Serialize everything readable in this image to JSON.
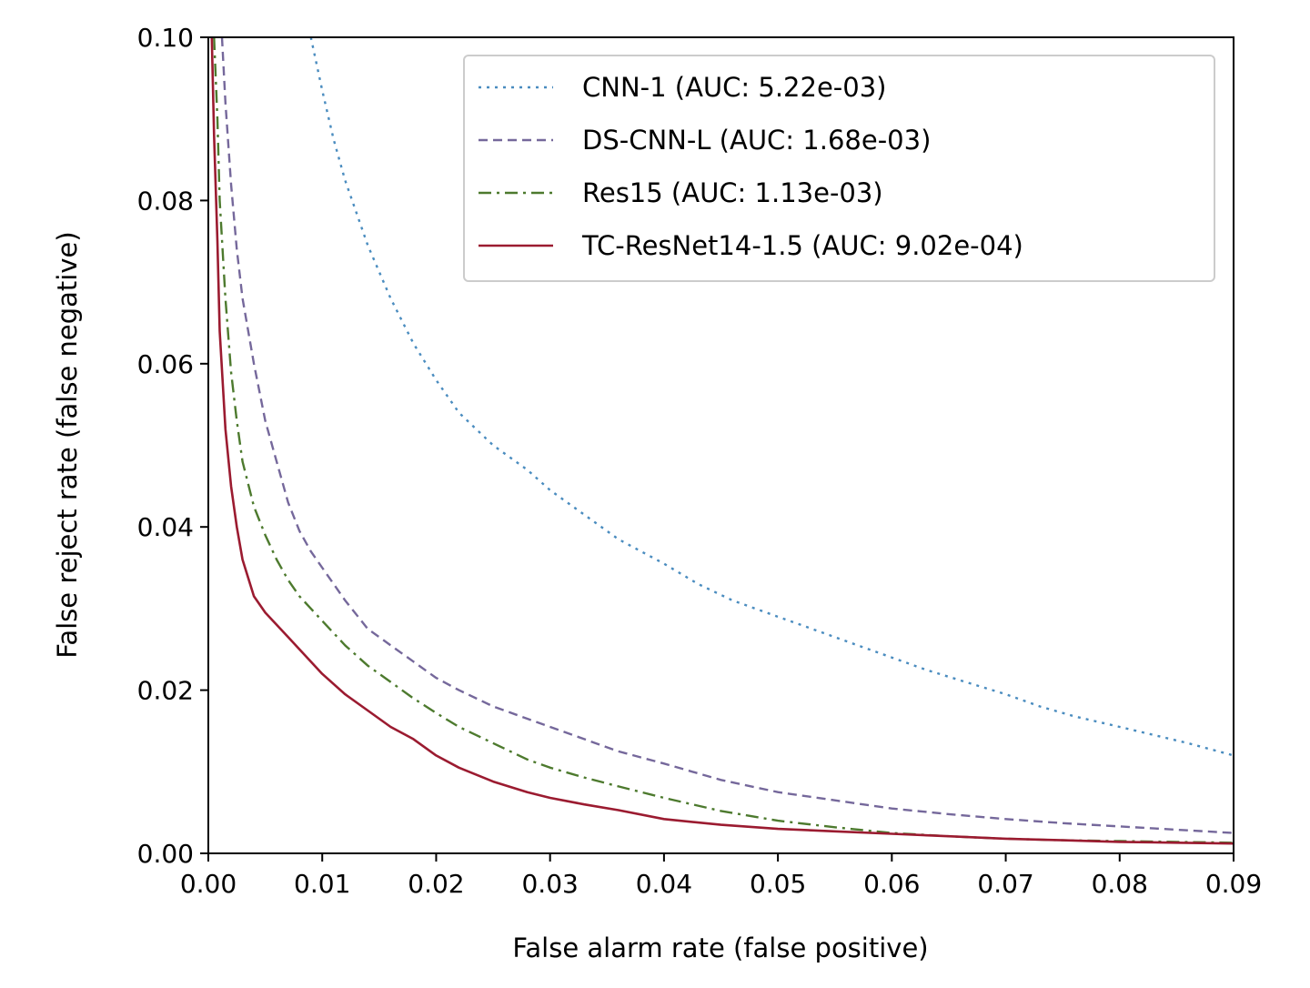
{
  "chart_data": {
    "type": "line",
    "title": "",
    "xlabel": "False alarm rate (false positive)",
    "ylabel": "False reject rate (false negative)",
    "xlim": [
      0.0,
      0.09
    ],
    "ylim": [
      0.0,
      0.1
    ],
    "xticks": [
      "0.00",
      "0.01",
      "0.02",
      "0.03",
      "0.04",
      "0.05",
      "0.06",
      "0.07",
      "0.08",
      "0.09"
    ],
    "yticks": [
      "0.00",
      "0.02",
      "0.04",
      "0.06",
      "0.08",
      "0.10"
    ],
    "grid": false,
    "legend_position": "top-right",
    "series": [
      {
        "name": "CNN-1 (AUC: 5.22e-03)",
        "color": "#4a8cbf",
        "style": "dotted",
        "x": [
          0.009,
          0.01,
          0.011,
          0.012,
          0.014,
          0.016,
          0.018,
          0.02,
          0.022,
          0.025,
          0.028,
          0.03,
          0.033,
          0.036,
          0.04,
          0.043,
          0.046,
          0.05,
          0.052,
          0.055,
          0.058,
          0.06,
          0.063,
          0.066,
          0.07,
          0.073,
          0.076,
          0.08,
          0.083,
          0.086,
          0.09
        ],
        "y": [
          0.1,
          0.0935,
          0.0875,
          0.0825,
          0.0745,
          0.068,
          0.0625,
          0.058,
          0.054,
          0.05,
          0.047,
          0.0445,
          0.0415,
          0.0385,
          0.0355,
          0.033,
          0.031,
          0.029,
          0.028,
          0.0265,
          0.025,
          0.024,
          0.0225,
          0.0212,
          0.0195,
          0.018,
          0.0168,
          0.0155,
          0.0145,
          0.0135,
          0.012
        ]
      },
      {
        "name": "DS-CNN-L (AUC: 1.68e-03)",
        "color": "#75689b",
        "style": "dashed",
        "x": [
          0.0012,
          0.0015,
          0.002,
          0.0025,
          0.003,
          0.004,
          0.005,
          0.006,
          0.007,
          0.008,
          0.009,
          0.01,
          0.012,
          0.014,
          0.016,
          0.018,
          0.02,
          0.022,
          0.025,
          0.028,
          0.03,
          0.033,
          0.036,
          0.04,
          0.045,
          0.05,
          0.055,
          0.06,
          0.065,
          0.07,
          0.075,
          0.08,
          0.085,
          0.09
        ],
        "y": [
          0.1,
          0.092,
          0.082,
          0.074,
          0.068,
          0.06,
          0.053,
          0.048,
          0.043,
          0.0395,
          0.037,
          0.035,
          0.031,
          0.0275,
          0.0255,
          0.0235,
          0.0215,
          0.02,
          0.018,
          0.0165,
          0.0155,
          0.014,
          0.0125,
          0.011,
          0.009,
          0.0075,
          0.0065,
          0.0055,
          0.0048,
          0.0042,
          0.0037,
          0.0033,
          0.0029,
          0.0025
        ]
      },
      {
        "name": "Res15 (AUC: 1.13e-03)",
        "color": "#4d7a2e",
        "style": "dashdot",
        "x": [
          0.0005,
          0.0008,
          0.001,
          0.0015,
          0.002,
          0.0025,
          0.003,
          0.004,
          0.005,
          0.006,
          0.007,
          0.008,
          0.009,
          0.01,
          0.012,
          0.014,
          0.016,
          0.018,
          0.02,
          0.022,
          0.025,
          0.028,
          0.03,
          0.033,
          0.036,
          0.04,
          0.045,
          0.05,
          0.055,
          0.06,
          0.065,
          0.07,
          0.075,
          0.08,
          0.085,
          0.09
        ],
        "y": [
          0.1,
          0.09,
          0.08,
          0.068,
          0.059,
          0.053,
          0.048,
          0.0425,
          0.039,
          0.036,
          0.0335,
          0.0315,
          0.03,
          0.0285,
          0.0255,
          0.023,
          0.021,
          0.019,
          0.0172,
          0.0155,
          0.0135,
          0.0115,
          0.0105,
          0.0093,
          0.0082,
          0.0068,
          0.0052,
          0.004,
          0.0032,
          0.0025,
          0.0021,
          0.0018,
          0.0016,
          0.0015,
          0.0014,
          0.0013
        ]
      },
      {
        "name": "TC-ResNet14-1.5 (AUC: 9.02e-04)",
        "color": "#9b1b30",
        "style": "solid",
        "x": [
          0.0003,
          0.0005,
          0.0008,
          0.001,
          0.0015,
          0.002,
          0.0025,
          0.003,
          0.004,
          0.005,
          0.006,
          0.007,
          0.008,
          0.009,
          0.01,
          0.012,
          0.014,
          0.016,
          0.018,
          0.02,
          0.022,
          0.025,
          0.028,
          0.03,
          0.033,
          0.036,
          0.04,
          0.045,
          0.05,
          0.055,
          0.06,
          0.065,
          0.07,
          0.075,
          0.08,
          0.085,
          0.09
        ],
        "y": [
          0.1,
          0.088,
          0.075,
          0.064,
          0.052,
          0.045,
          0.04,
          0.036,
          0.0315,
          0.0295,
          0.028,
          0.0265,
          0.025,
          0.0235,
          0.022,
          0.0195,
          0.0175,
          0.0155,
          0.014,
          0.012,
          0.0105,
          0.0088,
          0.0075,
          0.0068,
          0.006,
          0.0053,
          0.0042,
          0.0035,
          0.003,
          0.0027,
          0.0024,
          0.0021,
          0.0018,
          0.0016,
          0.0014,
          0.0013,
          0.0012
        ]
      }
    ]
  }
}
